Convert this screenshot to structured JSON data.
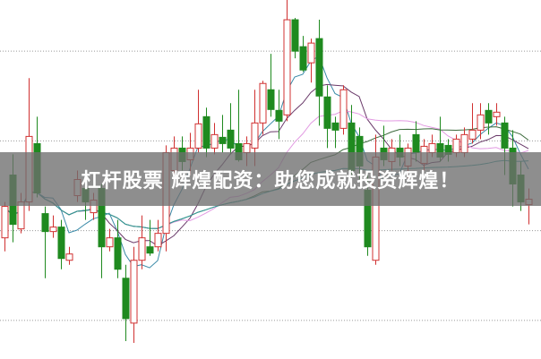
{
  "banner": {
    "text": "杠杆股票 辉煌配资：助您成就投资辉煌！"
  },
  "chart_data": {
    "type": "candlestick",
    "ylim": [
      0,
      400
    ],
    "grid": true,
    "gridlines": [
      343,
      243,
      143,
      43
    ],
    "colors": {
      "up": "#d03030",
      "down": "#1f8a1f",
      "grid": "#999999",
      "ma": [
        "#3a8aa8",
        "#6a3a6a",
        "#e29ae2",
        "#3d6b3d",
        "#2f9a9a"
      ]
    },
    "ma_windows": [
      5,
      10,
      20,
      30,
      60
    ],
    "ohlc": [
      [
        135,
        175,
        120,
        170
      ],
      [
        205,
        228,
        130,
        150
      ],
      [
        145,
        185,
        140,
        175
      ],
      [
        175,
        313,
        165,
        248
      ],
      [
        240,
        270,
        180,
        185
      ],
      [
        162,
        170,
        90,
        142
      ],
      [
        142,
        160,
        135,
        147
      ],
      [
        147,
        155,
        100,
        112
      ],
      [
        110,
        125,
        105,
        117
      ],
      [
        182,
        210,
        175,
        200
      ],
      [
        190,
        200,
        155,
        175
      ],
      [
        163,
        185,
        155,
        177
      ],
      [
        190,
        195,
        90,
        125
      ],
      [
        125,
        145,
        120,
        135
      ],
      [
        135,
        155,
        90,
        100
      ],
      [
        90,
        105,
        20,
        45
      ],
      [
        40,
        125,
        18,
        110
      ],
      [
        110,
        160,
        100,
        135
      ],
      [
        125,
        155,
        115,
        118
      ],
      [
        125,
        155,
        120,
        140
      ],
      [
        140,
        238,
        120,
        230
      ],
      [
        210,
        248,
        205,
        235
      ],
      [
        235,
        248,
        210,
        220
      ],
      [
        222,
        252,
        205,
        235
      ],
      [
        235,
        300,
        230,
        262
      ],
      [
        270,
        280,
        225,
        235
      ],
      [
        235,
        263,
        228,
        250
      ],
      [
        247,
        272,
        230,
        240
      ],
      [
        255,
        285,
        228,
        235
      ],
      [
        240,
        300,
        220,
        222
      ],
      [
        230,
        248,
        215,
        240
      ],
      [
        235,
        300,
        215,
        263
      ],
      [
        263,
        310,
        250,
        307
      ],
      [
        300,
        340,
        270,
        278
      ],
      [
        277,
        300,
        245,
        265
      ],
      [
        272,
        400,
        265,
        378
      ],
      [
        378,
        380,
        335,
        343
      ],
      [
        348,
        360,
        320,
        322
      ],
      [
        330,
        357,
        308,
        352
      ],
      [
        357,
        378,
        260,
        293
      ],
      [
        292,
        305,
        235,
        257
      ],
      [
        263,
        270,
        235,
        255
      ],
      [
        257,
        305,
        250,
        300
      ],
      [
        263,
        283,
        205,
        210
      ],
      [
        248,
        258,
        200,
        215
      ],
      [
        188,
        205,
        115,
        125
      ],
      [
        110,
        250,
        105,
        225
      ],
      [
        235,
        260,
        215,
        222
      ],
      [
        220,
        245,
        210,
        235
      ],
      [
        235,
        250,
        215,
        225
      ],
      [
        215,
        240,
        200,
        235
      ],
      [
        250,
        265,
        220,
        230
      ],
      [
        218,
        245,
        210,
        237
      ],
      [
        230,
        250,
        225,
        240
      ],
      [
        240,
        270,
        220,
        225
      ],
      [
        238,
        245,
        220,
        228
      ],
      [
        230,
        250,
        225,
        245
      ],
      [
        230,
        258,
        225,
        250
      ],
      [
        245,
        285,
        240,
        255
      ],
      [
        255,
        285,
        245,
        272
      ],
      [
        277,
        285,
        250,
        263
      ],
      [
        270,
        285,
        260,
        275
      ],
      [
        263,
        270,
        205,
        235
      ],
      [
        235,
        255,
        170,
        195
      ],
      [
        205,
        220,
        165,
        175
      ],
      [
        172,
        190,
        150,
        178
      ]
    ]
  }
}
